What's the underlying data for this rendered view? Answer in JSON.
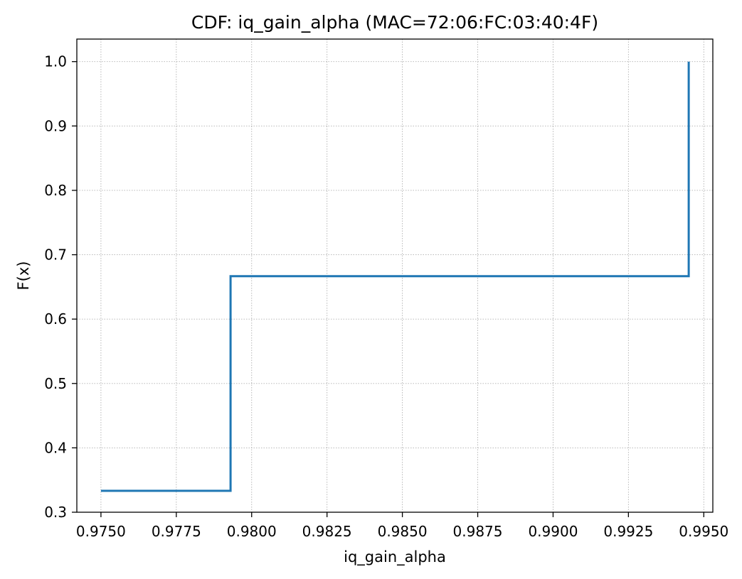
{
  "chart_data": {
    "type": "line",
    "subtype": "step",
    "title": "CDF: iq_gain_alpha (MAC=72:06:FC:03:40:4F)",
    "xlabel": "iq_gain_alpha",
    "ylabel": "F(x)",
    "xlim": [
      0.9742,
      0.9953
    ],
    "ylim": [
      0.3,
      1.035
    ],
    "x_ticks": [
      0.975,
      0.9775,
      0.98,
      0.9825,
      0.985,
      0.9875,
      0.99,
      0.9925,
      0.995
    ],
    "x_tick_labels": [
      "0.9750",
      "0.9775",
      "0.9800",
      "0.9825",
      "0.9850",
      "0.9875",
      "0.9900",
      "0.9925",
      "0.9950"
    ],
    "y_ticks": [
      0.3,
      0.4,
      0.5,
      0.6,
      0.7,
      0.8,
      0.9,
      1.0
    ],
    "y_tick_labels": [
      "0.3",
      "0.4",
      "0.5",
      "0.6",
      "0.7",
      "0.8",
      "0.9",
      "1.0"
    ],
    "grid": true,
    "series": [
      {
        "color": "#1f77b4",
        "x": [
          0.975,
          0.9793,
          0.9945
        ],
        "y": [
          0.3333,
          0.6667,
          1.0
        ]
      }
    ]
  }
}
